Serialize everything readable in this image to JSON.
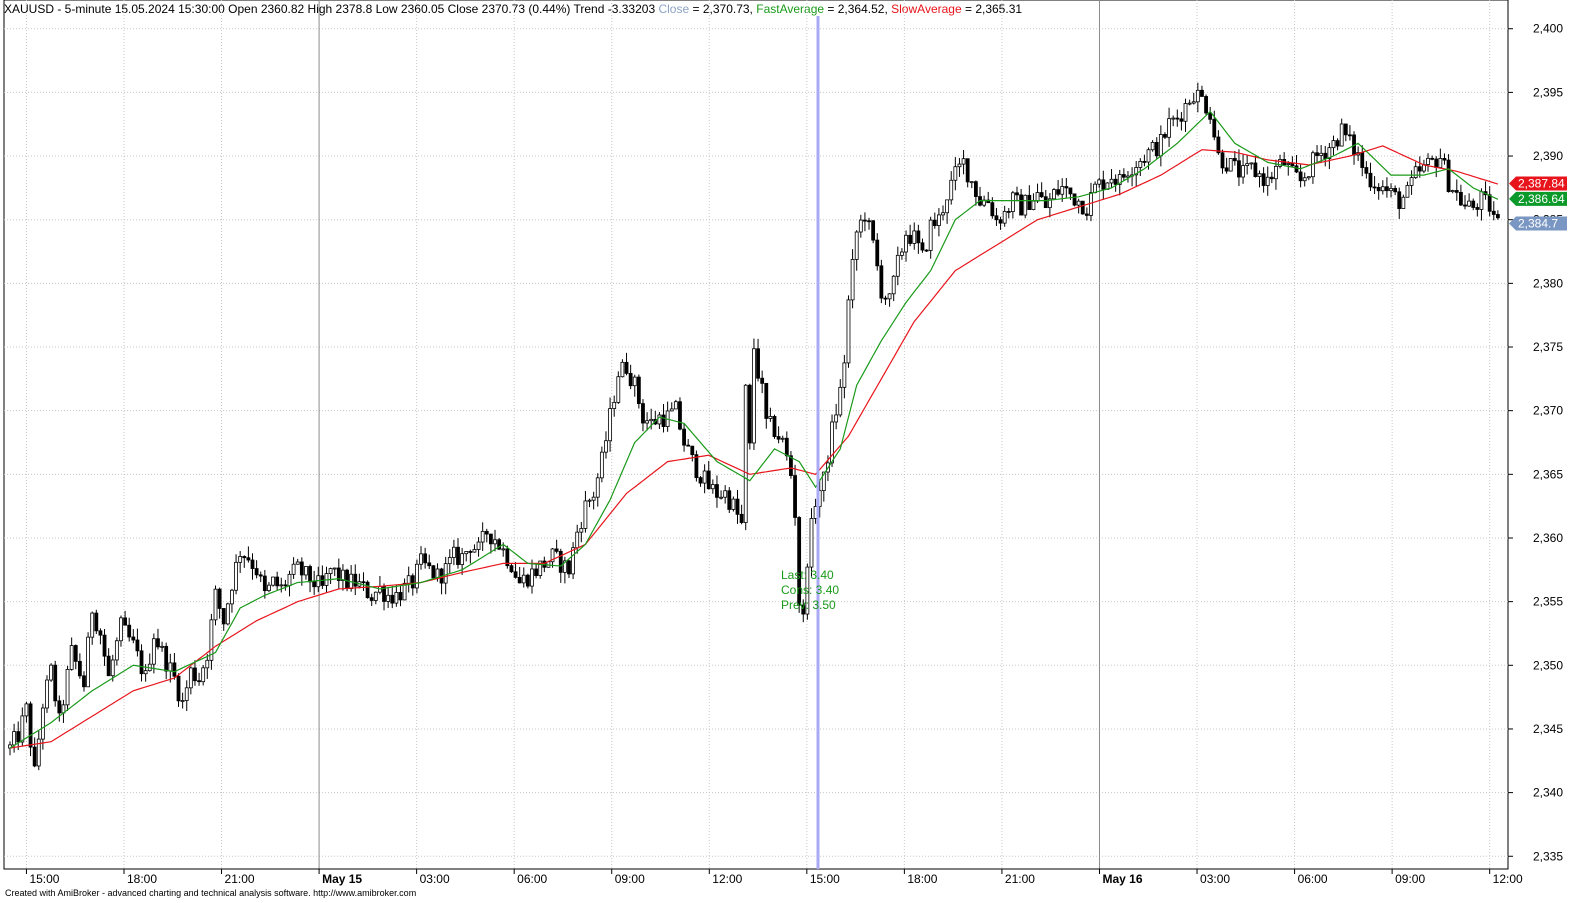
{
  "header": {
    "symbol_line": "XAUUSD - 5-minute 15.05.2024 15:30:00 Open 2360.82 High 2378.8 Low 2360.05 Close 2370.73 (0.44%) Trend -3.33203",
    "close_label": "Close",
    "close_value": " = 2,370.73, ",
    "fast_label": "FastAverage",
    "fast_value": " = 2,364.52, ",
    "slow_label": "SlowAverage",
    "slow_value": " = 2,365.31"
  },
  "footer": "Created with AmiBroker - advanced charting and technical analysis software. http://www.amibroker.com",
  "annotation": {
    "last": "Last: 3.40",
    "cons": "Cons: 3.40",
    "prev": "Prev: 3.50"
  },
  "price_tags": [
    {
      "label": "2,387.84",
      "value": 2387.84,
      "color": "#e8141b"
    },
    {
      "label": "2,386.64",
      "value": 2386.64,
      "color": "#0b9a2a"
    },
    {
      "label": "2,384.7",
      "value": 2384.7,
      "color": "#7a96c2"
    }
  ],
  "colors": {
    "close": "#8aa3c6",
    "fast": "#1a9a1a",
    "slow": "#e8141b",
    "cursor": "#a9a9f5",
    "grid": "#c8c8c8",
    "candle": "#000000"
  },
  "chart_data": {
    "type": "candlestick",
    "symbol": "XAUUSD",
    "interval": "5-minute",
    "ylim": [
      2334,
      2401
    ],
    "y_ticks": [
      2335,
      2340,
      2345,
      2350,
      2355,
      2360,
      2365,
      2370,
      2375,
      2380,
      2385,
      2390,
      2395,
      2400
    ],
    "y_tick_labels": [
      "2,335",
      "2,340",
      "2,345",
      "2,350",
      "2,355",
      "2,360",
      "2,365",
      "2,370",
      "2,375",
      "2,380",
      "2,385",
      "2,390",
      "2,395",
      "2,400"
    ],
    "x_ticks": [
      {
        "label": "15:00",
        "bold": false
      },
      {
        "label": "18:00",
        "bold": false
      },
      {
        "label": "21:00",
        "bold": false
      },
      {
        "label": "May 15",
        "bold": true
      },
      {
        "label": "03:00",
        "bold": false
      },
      {
        "label": "06:00",
        "bold": false
      },
      {
        "label": "09:00",
        "bold": false
      },
      {
        "label": "12:00",
        "bold": false
      },
      {
        "label": "15:00",
        "bold": false
      },
      {
        "label": "18:00",
        "bold": false
      },
      {
        "label": "21:00",
        "bold": false
      },
      {
        "label": "May 16",
        "bold": true
      },
      {
        "label": "03:00",
        "bold": false
      },
      {
        "label": "06:00",
        "bold": false
      },
      {
        "label": "09:00",
        "bold": false
      },
      {
        "label": "12:00",
        "bold": false
      }
    ],
    "close_path": [
      [
        0,
        2343.5
      ],
      [
        2,
        2344.5
      ],
      [
        4,
        2346.5
      ],
      [
        6,
        2341.5
      ],
      [
        8,
        2347.0
      ],
      [
        10,
        2349.5
      ],
      [
        12,
        2345.5
      ],
      [
        15,
        2351.0
      ],
      [
        18,
        2348.5
      ],
      [
        20,
        2354.5
      ],
      [
        22,
        2352.5
      ],
      [
        24,
        2349.0
      ],
      [
        27,
        2353.0
      ],
      [
        30,
        2351.5
      ],
      [
        33,
        2349.0
      ],
      [
        35,
        2352.5
      ],
      [
        37,
        2351.0
      ],
      [
        40,
        2349.0
      ],
      [
        42,
        2347.0
      ],
      [
        44,
        2349.5
      ],
      [
        46,
        2349.0
      ],
      [
        48,
        2351.0
      ],
      [
        50,
        2355.5
      ],
      [
        52,
        2353.5
      ],
      [
        54,
        2356.5
      ],
      [
        56,
        2359.0
      ],
      [
        58,
        2358.5
      ],
      [
        60,
        2357.5
      ],
      [
        62,
        2355.5
      ],
      [
        64,
        2356.5
      ],
      [
        66,
        2356.0
      ],
      [
        68,
        2357.0
      ],
      [
        70,
        2357.5
      ],
      [
        72,
        2357.0
      ],
      [
        74,
        2356.5
      ],
      [
        76,
        2356.0
      ],
      [
        78,
        2357.5
      ],
      [
        80,
        2357.0
      ],
      [
        82,
        2356.5
      ],
      [
        84,
        2356.5
      ],
      [
        86,
        2356.0
      ],
      [
        88,
        2355.5
      ],
      [
        90,
        2356.0
      ],
      [
        92,
        2355.5
      ],
      [
        94,
        2355.5
      ],
      [
        96,
        2356.0
      ],
      [
        98,
        2356.5
      ],
      [
        100,
        2358.0
      ],
      [
        102,
        2357.5
      ],
      [
        104,
        2357.0
      ],
      [
        106,
        2357.5
      ],
      [
        108,
        2358.5
      ],
      [
        110,
        2358.5
      ],
      [
        112,
        2359.5
      ],
      [
        114,
        2359.0
      ],
      [
        116,
        2360.5
      ],
      [
        118,
        2360.0
      ],
      [
        120,
        2359.0
      ],
      [
        122,
        2358.0
      ],
      [
        124,
        2356.5
      ],
      [
        126,
        2357.0
      ],
      [
        128,
        2357.5
      ],
      [
        130,
        2358.0
      ],
      [
        132,
        2358.5
      ],
      [
        134,
        2358.0
      ],
      [
        136,
        2357.5
      ],
      [
        138,
        2360.5
      ],
      [
        140,
        2362.5
      ],
      [
        142,
        2363.5
      ],
      [
        144,
        2366.0
      ],
      [
        146,
        2369.5
      ],
      [
        148,
        2373.0
      ],
      [
        150,
        2373.5
      ],
      [
        152,
        2372.0
      ],
      [
        154,
        2369.5
      ],
      [
        156,
        2369.0
      ],
      [
        158,
        2369.5
      ],
      [
        160,
        2369.5
      ],
      [
        162,
        2370.0
      ],
      [
        164,
        2367.5
      ],
      [
        166,
        2366.0
      ],
      [
        168,
        2365.0
      ],
      [
        170,
        2364.0
      ],
      [
        172,
        2363.5
      ],
      [
        174,
        2363.5
      ],
      [
        176,
        2362.5
      ],
      [
        178,
        2361.0
      ],
      [
        179,
        2371.5
      ],
      [
        180,
        2367.0
      ],
      [
        181,
        2375.0
      ],
      [
        182,
        2373.0
      ],
      [
        183,
        2371.5
      ],
      [
        184,
        2369.0
      ],
      [
        186,
        2368.5
      ],
      [
        188,
        2367.5
      ],
      [
        190,
        2365.0
      ],
      [
        191,
        2362.0
      ],
      [
        192,
        2355.0
      ],
      [
        193,
        2353.5
      ],
      [
        194,
        2358.5
      ],
      [
        196,
        2363.0
      ],
      [
        198,
        2364.5
      ],
      [
        200,
        2368.5
      ],
      [
        202,
        2371.5
      ],
      [
        203,
        2374.0
      ],
      [
        204,
        2378.5
      ],
      [
        206,
        2384.0
      ],
      [
        208,
        2385.5
      ],
      [
        210,
        2383.0
      ],
      [
        212,
        2379.5
      ],
      [
        214,
        2378.5
      ],
      [
        216,
        2381.5
      ],
      [
        218,
        2384.0
      ],
      [
        220,
        2383.5
      ],
      [
        222,
        2382.0
      ],
      [
        224,
        2384.5
      ],
      [
        226,
        2385.0
      ],
      [
        228,
        2387.0
      ],
      [
        230,
        2388.5
      ],
      [
        232,
        2389.5
      ],
      [
        234,
        2388.0
      ],
      [
        236,
        2386.5
      ],
      [
        238,
        2386.5
      ],
      [
        240,
        2385.0
      ],
      [
        242,
        2385.5
      ],
      [
        244,
        2386.5
      ],
      [
        246,
        2386.0
      ],
      [
        248,
        2386.5
      ],
      [
        250,
        2387.0
      ],
      [
        252,
        2386.0
      ],
      [
        254,
        2387.0
      ],
      [
        256,
        2387.5
      ],
      [
        258,
        2387.0
      ],
      [
        260,
        2386.5
      ],
      [
        262,
        2386.0
      ],
      [
        264,
        2387.5
      ],
      [
        266,
        2388.0
      ],
      [
        268,
        2388.5
      ],
      [
        270,
        2388.0
      ],
      [
        272,
        2389.0
      ],
      [
        274,
        2389.5
      ],
      [
        276,
        2390.0
      ],
      [
        278,
        2390.5
      ],
      [
        280,
        2391.0
      ],
      [
        282,
        2392.5
      ],
      [
        284,
        2393.0
      ],
      [
        286,
        2394.0
      ],
      [
        288,
        2395.0
      ],
      [
        290,
        2394.5
      ],
      [
        292,
        2393.5
      ],
      [
        294,
        2390.0
      ],
      [
        296,
        2389.5
      ],
      [
        298,
        2389.0
      ],
      [
        300,
        2388.5
      ],
      [
        302,
        2389.0
      ],
      [
        304,
        2388.5
      ],
      [
        306,
        2388.0
      ],
      [
        308,
        2389.0
      ],
      [
        310,
        2389.5
      ],
      [
        312,
        2388.5
      ],
      [
        314,
        2388.0
      ],
      [
        316,
        2389.0
      ],
      [
        318,
        2390.0
      ],
      [
        320,
        2390.5
      ],
      [
        322,
        2391.0
      ],
      [
        324,
        2392.0
      ],
      [
        326,
        2391.0
      ],
      [
        328,
        2390.0
      ],
      [
        330,
        2388.5
      ],
      [
        332,
        2388.0
      ],
      [
        334,
        2387.5
      ],
      [
        336,
        2387.0
      ],
      [
        338,
        2386.5
      ],
      [
        340,
        2387.0
      ],
      [
        342,
        2388.5
      ],
      [
        344,
        2389.0
      ],
      [
        346,
        2389.5
      ],
      [
        348,
        2390.0
      ],
      [
        350,
        2388.0
      ],
      [
        352,
        2387.0
      ],
      [
        354,
        2386.0
      ],
      [
        356,
        2386.0
      ],
      [
        358,
        2386.5
      ],
      [
        360,
        2386.0
      ],
      [
        362,
        2384.7
      ]
    ],
    "fast_average": [
      [
        0,
        2343.5
      ],
      [
        10,
        2345.5
      ],
      [
        20,
        2348.0
      ],
      [
        30,
        2350.0
      ],
      [
        40,
        2349.5
      ],
      [
        50,
        2351.0
      ],
      [
        56,
        2354.5
      ],
      [
        62,
        2355.5
      ],
      [
        70,
        2356.5
      ],
      [
        80,
        2356.8
      ],
      [
        90,
        2356.0
      ],
      [
        100,
        2356.5
      ],
      [
        110,
        2357.5
      ],
      [
        120,
        2359.5
      ],
      [
        126,
        2358.0
      ],
      [
        134,
        2357.8
      ],
      [
        140,
        2359.5
      ],
      [
        146,
        2363.0
      ],
      [
        152,
        2367.5
      ],
      [
        158,
        2369.5
      ],
      [
        164,
        2369.0
      ],
      [
        172,
        2366.0
      ],
      [
        180,
        2364.5
      ],
      [
        186,
        2367.0
      ],
      [
        192,
        2366.0
      ],
      [
        196,
        2364.0
      ],
      [
        202,
        2367.0
      ],
      [
        206,
        2372.0
      ],
      [
        212,
        2375.5
      ],
      [
        218,
        2378.5
      ],
      [
        224,
        2381.0
      ],
      [
        230,
        2385.0
      ],
      [
        236,
        2386.5
      ],
      [
        244,
        2386.5
      ],
      [
        252,
        2386.5
      ],
      [
        260,
        2386.8
      ],
      [
        268,
        2387.5
      ],
      [
        276,
        2389.0
      ],
      [
        284,
        2391.0
      ],
      [
        292,
        2393.5
      ],
      [
        298,
        2391.0
      ],
      [
        306,
        2389.5
      ],
      [
        314,
        2389.0
      ],
      [
        322,
        2390.0
      ],
      [
        328,
        2391.0
      ],
      [
        336,
        2388.5
      ],
      [
        344,
        2388.5
      ],
      [
        350,
        2389.0
      ],
      [
        356,
        2387.5
      ],
      [
        362,
        2386.6
      ]
    ],
    "slow_average": [
      [
        0,
        2343.5
      ],
      [
        10,
        2344.0
      ],
      [
        20,
        2346.0
      ],
      [
        30,
        2348.0
      ],
      [
        40,
        2349.0
      ],
      [
        50,
        2351.5
      ],
      [
        60,
        2353.5
      ],
      [
        70,
        2355.0
      ],
      [
        80,
        2356.0
      ],
      [
        90,
        2356.2
      ],
      [
        100,
        2356.5
      ],
      [
        110,
        2357.3
      ],
      [
        120,
        2358.0
      ],
      [
        130,
        2358.0
      ],
      [
        140,
        2359.5
      ],
      [
        150,
        2363.5
      ],
      [
        160,
        2366.0
      ],
      [
        170,
        2366.5
      ],
      [
        180,
        2365.0
      ],
      [
        190,
        2365.5
      ],
      [
        196,
        2365.0
      ],
      [
        204,
        2368.0
      ],
      [
        212,
        2372.5
      ],
      [
        220,
        2377.0
      ],
      [
        230,
        2381.0
      ],
      [
        240,
        2383.0
      ],
      [
        250,
        2385.0
      ],
      [
        260,
        2386.0
      ],
      [
        270,
        2387.0
      ],
      [
        280,
        2388.5
      ],
      [
        290,
        2390.5
      ],
      [
        298,
        2390.3
      ],
      [
        306,
        2389.7
      ],
      [
        316,
        2389.3
      ],
      [
        326,
        2390.0
      ],
      [
        334,
        2390.8
      ],
      [
        344,
        2389.3
      ],
      [
        352,
        2388.8
      ],
      [
        362,
        2387.8
      ]
    ]
  }
}
